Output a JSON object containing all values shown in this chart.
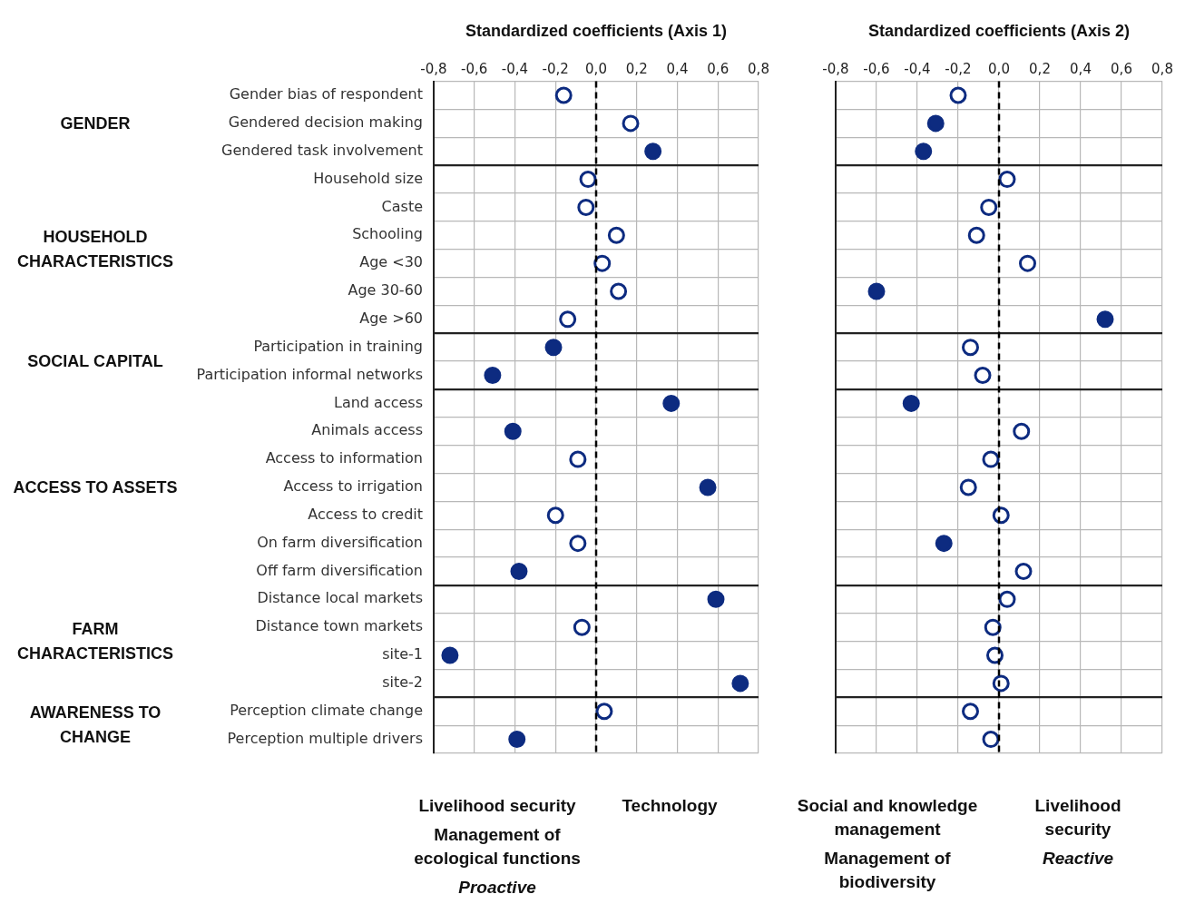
{
  "chart_data": [
    {
      "type": "scatter",
      "orientation": "horizontal",
      "xlabel": "Standardized coefficients (Axis 1)",
      "categories": [
        "Gender bias of respondent",
        "Gendered decision making",
        "Gendered task involvement",
        "Household size",
        "Caste",
        "Schooling",
        "Age <30",
        "Age 30-60",
        "Age >60",
        "Participation in training",
        "Participation informal networks",
        "Land access",
        "Animals access",
        "Access to information",
        "Access to irrigation",
        "Access to credit",
        "On farm diversification",
        "Off farm diversification",
        "Distance local markets",
        "Distance town markets",
        "site-1",
        "site-2",
        "Perception climate change",
        "Perception multiple drivers"
      ],
      "series": [
        {
          "color": "#0d2b80",
          "values": [
            null,
            null,
            0.28,
            null,
            null,
            null,
            null,
            null,
            null,
            -0.21,
            -0.51,
            0.37,
            -0.41,
            null,
            0.55,
            null,
            null,
            -0.38,
            0.59,
            null,
            -0.72,
            0.71,
            null,
            -0.39
          ]
        },
        {
          "color": "#0d2b80",
          "values": [
            -0.16,
            0.17,
            null,
            -0.04,
            -0.05,
            0.1,
            0.03,
            0.11,
            -0.14,
            null,
            null,
            null,
            null,
            -0.09,
            null,
            -0.2,
            -0.09,
            null,
            null,
            -0.07,
            null,
            null,
            0.04,
            null
          ]
        }
      ],
      "xlim": [
        -0.8,
        0.8
      ],
      "xticks": [
        {
          "value": -0.8,
          "label": "-0,8"
        },
        {
          "value": -0.6,
          "label": "-0,6"
        },
        {
          "value": -0.4,
          "label": "-0,4"
        },
        {
          "value": -0.2,
          "label": "-0,2"
        },
        {
          "value": 0,
          "label": "0,0"
        },
        {
          "value": 0.2,
          "label": "0,2"
        },
        {
          "value": 0.4,
          "label": "0,4"
        },
        {
          "value": 0.6,
          "label": "0,6"
        },
        {
          "value": 0.8,
          "label": "0,8"
        }
      ],
      "grid": true,
      "marker": "circle",
      "ref_lines": [
        {
          "axis": "x",
          "value": 0,
          "line_style": "dashed",
          "color": "#000000"
        }
      ],
      "annotations": [
        "GENDER",
        "HOUSEHOLD CHARACTERISTICS",
        "SOCIAL CAPITAL",
        "ACCESS TO ASSETS",
        "FARM CHARACTERISTICS",
        "AWARENESS TO CHANGE",
        "Livelihood security",
        "Management of ecological functions",
        "Proactive",
        "Technology"
      ]
    },
    {
      "type": "scatter",
      "orientation": "horizontal",
      "xlabel": "Standardized coefficients (Axis 2)",
      "tick_labels": "x",
      "categories": [
        null,
        null,
        null,
        null,
        null,
        null,
        null,
        null,
        null,
        null,
        null,
        null,
        null,
        null,
        null,
        null,
        null,
        null,
        null,
        null,
        null,
        null,
        null,
        null
      ],
      "series": [
        {
          "color": "#0d2b80",
          "values": [
            null,
            -0.31,
            -0.37,
            null,
            null,
            null,
            null,
            -0.6,
            0.52,
            null,
            null,
            -0.43,
            null,
            null,
            null,
            null,
            -0.27,
            null,
            null,
            null,
            null,
            null,
            null,
            null
          ]
        },
        {
          "color": "#0d2b80",
          "values": [
            -0.2,
            null,
            null,
            0.04,
            -0.05,
            -0.11,
            0.14,
            null,
            null,
            -0.14,
            -0.08,
            null,
            0.11,
            -0.04,
            -0.15,
            0.01,
            null,
            0.12,
            0.04,
            -0.03,
            -0.02,
            0.01,
            -0.14,
            -0.04
          ]
        }
      ],
      "xlim": [
        -0.8,
        0.8
      ],
      "xticks": [
        {
          "value": -0.8,
          "label": "-0,8"
        },
        {
          "value": -0.6,
          "label": "-0,6"
        },
        {
          "value": -0.4,
          "label": "-0,4"
        },
        {
          "value": -0.2,
          "label": "-0,2"
        },
        {
          "value": 0,
          "label": "0,0"
        },
        {
          "value": 0.2,
          "label": "0,2"
        },
        {
          "value": 0.4,
          "label": "0,4"
        },
        {
          "value": 0.6,
          "label": "0,6"
        },
        {
          "value": 0.8,
          "label": "0,8"
        }
      ],
      "grid": true,
      "marker": "circle",
      "ref_lines": [
        {
          "axis": "x",
          "value": 0,
          "line_style": "dashed",
          "color": "#000000"
        }
      ],
      "annotations": [
        "Social and knowledge management",
        "Management of biodiversity",
        "Livelihood security",
        "Reactive"
      ]
    }
  ]
}
